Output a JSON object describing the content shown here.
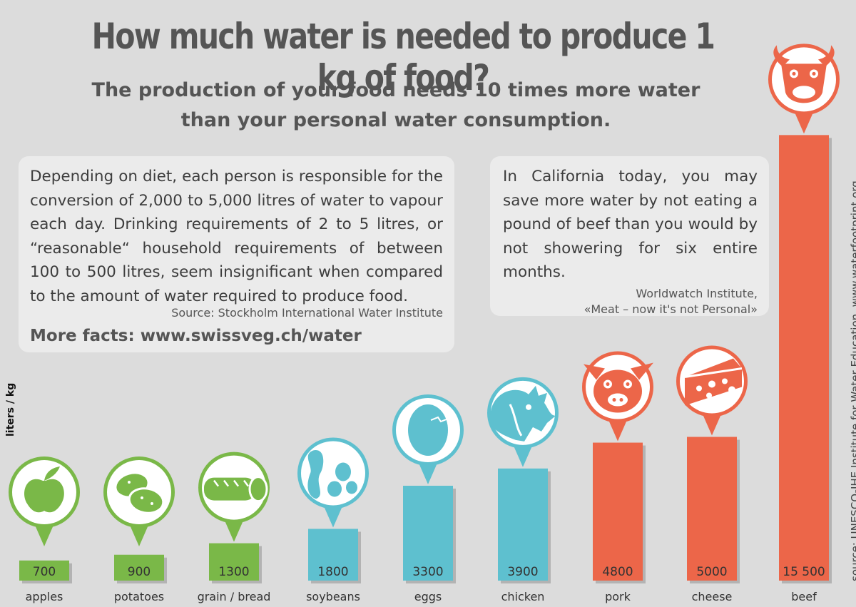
{
  "header": {
    "title": "How much water is needed to produce 1 kg of food?",
    "subtitle_line1": "The production of your food needs 10 times more water",
    "subtitle_line2": "than your personal water consumption."
  },
  "box_left": {
    "text": "Depending on diet, each person is responsible for the conversion of 2,000 to 5,000 litres of water to vapour each day. Drinking requirements of 2 to 5 litres, or “reasonable“ household requirements of between 100 to 500 litres, seem insignificant when compared to the amount of water required to produce food.",
    "source": "Source: Stockholm International Water Institute",
    "more_facts": "More facts: www.swissveg.ch/water"
  },
  "box_right": {
    "text": "In California today, you may save more water by not eating a pound of beef than you would by not showering for six entire months.",
    "source_line1": "Worldwatch Institute,",
    "source_line2": "«Meat – now it's not Personal»"
  },
  "side_source": "source: UNESCO-IHE Institute for Water Education, www.waterfootprint.org",
  "colors": {
    "plant": "#7ab848",
    "water": "#5ec0cf",
    "meat": "#ec6649",
    "background": "#dcdcdc"
  },
  "chart_data": {
    "type": "bar",
    "ylabel": "liters / kg",
    "categories": [
      "apples",
      "potatoes",
      "grain / bread",
      "soybeans",
      "eggs",
      "chicken",
      "pork",
      "cheese",
      "beef"
    ],
    "values": [
      700,
      900,
      1300,
      1800,
      3300,
      3900,
      4800,
      5000,
      15500
    ],
    "value_labels": [
      "700",
      "900",
      "1300",
      "1800",
      "3300",
      "3900",
      "4800",
      "5000",
      "15 500"
    ],
    "groups": [
      "plant",
      "plant",
      "plant",
      "water",
      "water",
      "water",
      "meat",
      "meat",
      "meat"
    ],
    "icons": [
      "apple-icon",
      "potato-icon",
      "bread-icon",
      "soybean-icon",
      "egg-icon",
      "chicken-icon",
      "pig-icon",
      "cheese-icon",
      "cow-icon"
    ]
  }
}
